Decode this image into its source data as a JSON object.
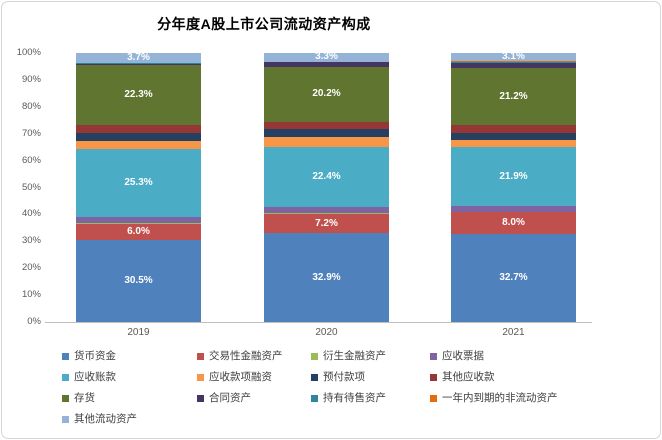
{
  "title": "分年度A股上市公司流动资产构成",
  "chart_data": {
    "type": "bar",
    "subtype": "stacked-100-percent-column",
    "title": "分年度A股上市公司流动资产构成",
    "categories": [
      "2019",
      "2020",
      "2021"
    ],
    "series": [
      {
        "name": "货币资金",
        "color": "#4F81BD",
        "values": [
          30.5,
          32.9,
          32.7
        ],
        "labeled": true
      },
      {
        "name": "交易性金融资产",
        "color": "#C0504D",
        "values": [
          6.0,
          7.2,
          8.0
        ],
        "labeled": true
      },
      {
        "name": "衍生金融资产",
        "color": "#9BBB59",
        "values": [
          0.1,
          0.4,
          0.1
        ],
        "labeled": false
      },
      {
        "name": "应收票据",
        "color": "#8064A2",
        "values": [
          2.3,
          2.3,
          2.3
        ],
        "labeled": false
      },
      {
        "name": "应收账款",
        "color": "#4BACC6",
        "values": [
          25.3,
          22.4,
          21.9
        ],
        "labeled": true
      },
      {
        "name": "应收款项融资",
        "color": "#F79646",
        "values": [
          2.9,
          3.4,
          2.5
        ],
        "labeled": false
      },
      {
        "name": "预付款项",
        "color": "#254061",
        "values": [
          3.0,
          3.1,
          2.8
        ],
        "labeled": false
      },
      {
        "name": "其他应收款",
        "color": "#953734",
        "values": [
          3.2,
          2.8,
          2.9
        ],
        "labeled": false
      },
      {
        "name": "存货",
        "color": "#5F7530",
        "values": [
          22.3,
          20.2,
          21.2
        ],
        "labeled": true
      },
      {
        "name": "合同资产",
        "color": "#453561",
        "values": [
          0.3,
          1.8,
          2.0
        ],
        "labeled": false
      },
      {
        "name": "持有待售资产",
        "color": "#31859B",
        "values": [
          0.2,
          0.1,
          0.1
        ],
        "labeled": false
      },
      {
        "name": "一年内到期的非流动资产",
        "color": "#E46C0A",
        "values": [
          0.2,
          0.1,
          0.4
        ],
        "labeled": false
      },
      {
        "name": "其他流动资产",
        "color": "#95B3D7",
        "values": [
          3.7,
          3.3,
          3.1
        ],
        "labeled": true
      }
    ],
    "data_labels": {
      "货币资金": [
        "30.5%",
        "32.9%",
        "32.7%"
      ],
      "交易性金融资产": [
        "6.0%",
        "7.2%",
        "8.0%"
      ],
      "应收账款": [
        "25.3%",
        "22.4%",
        "21.9%"
      ],
      "存货": [
        "22.3%",
        "20.2%",
        "21.2%"
      ],
      "其他流动资产": [
        "3.7%",
        "3.3%",
        "3.1%"
      ]
    },
    "xlabel": "",
    "ylabel": "",
    "ylim": [
      0,
      100
    ],
    "y_ticks": [
      "0%",
      "10%",
      "20%",
      "30%",
      "40%",
      "50%",
      "60%",
      "70%",
      "80%",
      "90%",
      "100%"
    ],
    "grid": false,
    "legend_position": "bottom",
    "label_color": "#FFFFFF",
    "axis_text_color": "#595959"
  }
}
